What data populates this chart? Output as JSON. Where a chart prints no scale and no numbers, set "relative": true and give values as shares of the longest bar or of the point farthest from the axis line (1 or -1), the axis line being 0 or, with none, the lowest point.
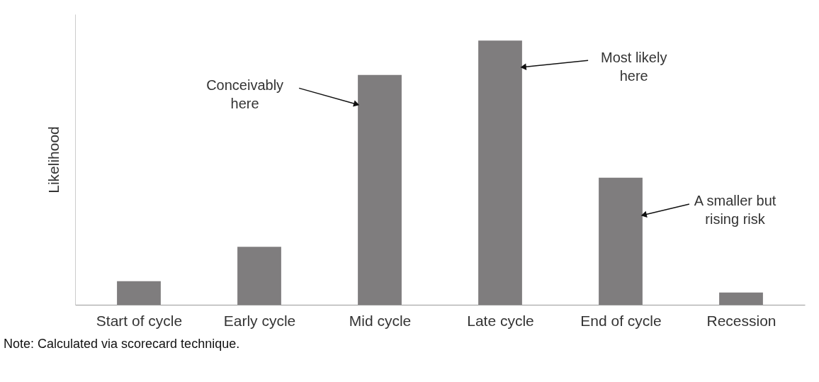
{
  "chart_data": {
    "type": "bar",
    "relative": true,
    "ylabel": "Likelihood",
    "categories": [
      "Start of cycle",
      "Early cycle",
      "Mid cycle",
      "Late cycle",
      "End of cycle",
      "Recession"
    ],
    "values": [
      0.089,
      0.219,
      0.87,
      1.0,
      0.481,
      0.046
    ],
    "color": "#7f7d7e",
    "grid": false,
    "annotations": [
      "Conceivably here",
      "Most likely here",
      "A smaller but rising risk",
      "Note: Calculated via scorecard technique."
    ]
  }
}
